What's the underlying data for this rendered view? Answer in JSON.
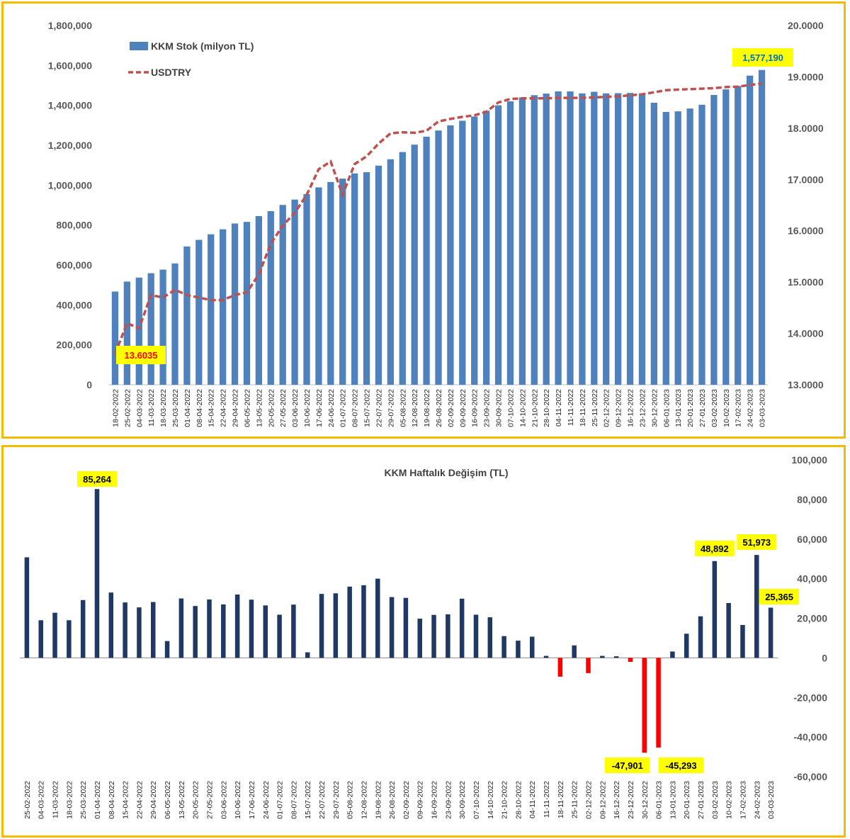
{
  "colors": {
    "border": "#f2bd00",
    "stock_bar": "#4f81bd",
    "usdtry_line": "#c0504d",
    "positive_bar": "#1f3864",
    "negative_bar": "#ff0000",
    "callout_bg": "#ffff00",
    "callout_red_text": "#ff0000",
    "callout_blue_text": "#0070c0",
    "callout_black_text": "#000000"
  },
  "chart_data": [
    {
      "type": "bar",
      "combo_line": true,
      "legend_position": "top-left",
      "grid": false,
      "legend": {
        "bar_series": "KKM Stok (milyon TL)",
        "line_series": "USDTRY"
      },
      "y_left": {
        "ylim": [
          0,
          1800000
        ],
        "ticks": [
          "0",
          "200,000",
          "400,000",
          "600,000",
          "800,000",
          "1,000,000",
          "1,200,000",
          "1,400,000",
          "1,600,000",
          "1,800,000"
        ]
      },
      "y_right": {
        "ylim": [
          13.0,
          20.0
        ],
        "ticks": [
          "13.0000",
          "14.0000",
          "15.0000",
          "16.0000",
          "17.0000",
          "18.0000",
          "19.0000",
          "20.0000"
        ]
      },
      "categories": [
        "18-02-2022",
        "25-02-2022",
        "04-03-2022",
        "11-03-2022",
        "18-03-2022",
        "25-03-2022",
        "01-04-2022",
        "08-04-2022",
        "15-04-2022",
        "22-04-2022",
        "29-04-2022",
        "06-05-2022",
        "13-05-2022",
        "20-05-2022",
        "27-05-2022",
        "03-06-2022",
        "10-06-2022",
        "17-06-2022",
        "24-06-2022",
        "01-07-2022",
        "08-07-2022",
        "15-07-2022",
        "22-07-2022",
        "29-07-2022",
        "05-08-2022",
        "12-08-2022",
        "19-08-2022",
        "26-08-2022",
        "02-09-2022",
        "09-09-2022",
        "16-09-2022",
        "23-09-2022",
        "30-09-2022",
        "07-10-2022",
        "14-10-2022",
        "21-10-2022",
        "28-10-2022",
        "04-11-2022",
        "11-11-2022",
        "18-11-2022",
        "25-11-2022",
        "02-12-2022",
        "09-12-2022",
        "16-12-2022",
        "23-12-2022",
        "30-12-2022",
        "06-01-2023",
        "13-01-2023",
        "20-01-2023",
        "27-01-2023",
        "03-02-2023",
        "10-02-2023",
        "17-02-2023",
        "24-02-2023",
        "03-03-2023"
      ],
      "x_tick_labels": [
        "18-02-2022",
        "25-02-2022",
        "04-03-2022",
        "11-03-2022",
        "18-03-2022",
        "25-03-2022",
        "01-04-2022",
        "08-04-2022",
        "15-04-2022",
        "22-04-2022",
        "29-04-2022",
        "06-05-2022",
        "13-05-2022",
        "20-05-2022",
        "27-05-2022",
        "03-06-2022",
        "10-06-2022",
        "17-06-2022",
        "24-06-2022",
        "01-07-2022",
        "08-07-2022",
        "15-07-2022",
        "22-07-2022",
        "29-07-2022",
        "05-08-2022",
        "12-08-2022",
        "19-08-2022",
        "26-08-2022",
        "02-09-2022",
        "09-09-2022",
        "16-09-2022",
        "23-09-2022",
        "30-09-2022",
        "07-10-2022",
        "14-10-2022",
        "21-10-2022",
        "28-10-2022",
        "04-11-2022",
        "11-11-2022",
        "18-11-2022",
        "25-11-2022",
        "02-12-2022",
        "09-12-2022",
        "16-12-2022",
        "23-12-2022",
        "30-12-2022",
        "06-01-2023",
        "13-01-2023",
        "20-01-2023",
        "27-01-2023",
        "03-02-2023",
        "10-02-2023",
        "17-02-2023",
        "24-02-2023",
        "03-03-2023"
      ],
      "series": [
        {
          "name": "KKM Stok (milyon TL)",
          "type": "bar",
          "axis": "left",
          "values": [
            467000,
            517000,
            537000,
            559000,
            577000,
            608000,
            693000,
            726000,
            754000,
            779000,
            808000,
            816000,
            845000,
            870000,
            901000,
            928000,
            955000,
            989000,
            1016000,
            1033000,
            1059000,
            1065000,
            1098000,
            1130000,
            1166000,
            1203000,
            1243000,
            1274000,
            1300000,
            1323000,
            1344000,
            1373000,
            1400000,
            1420000,
            1440000,
            1451000,
            1459000,
            1470000,
            1470000,
            1460000,
            1468000,
            1460000,
            1461000,
            1462000,
            1460000,
            1413000,
            1367000,
            1370000,
            1384000,
            1403000,
            1452000,
            1480000,
            1497000,
            1549000,
            1577190
          ]
        },
        {
          "name": "USDTRY",
          "type": "line",
          "axis": "right",
          "style": "dashed",
          "values": [
            13.6035,
            14.2,
            14.1,
            14.75,
            14.7,
            14.85,
            14.75,
            14.7,
            14.65,
            14.65,
            14.75,
            14.8,
            15.15,
            15.75,
            16.1,
            16.35,
            16.7,
            17.2,
            17.35,
            16.7,
            17.3,
            17.45,
            17.7,
            17.9,
            17.92,
            17.91,
            17.95,
            18.13,
            18.18,
            18.22,
            18.25,
            18.32,
            18.5,
            18.57,
            18.58,
            18.58,
            18.58,
            18.59,
            18.59,
            18.59,
            18.6,
            18.61,
            18.62,
            18.64,
            18.66,
            18.7,
            18.74,
            18.75,
            18.76,
            18.77,
            18.78,
            18.8,
            18.81,
            18.84,
            18.87
          ]
        }
      ],
      "annotations": [
        {
          "text": "13.6035",
          "series": "USDTRY",
          "category": "18-02-2022"
        },
        {
          "text": "1,577,190",
          "series": "KKM Stok (milyon TL)",
          "category": "03-03-2023"
        }
      ]
    },
    {
      "type": "bar",
      "title": "KKM Haftalık Değişim (TL)",
      "grid": false,
      "y_right": {
        "ylim": [
          -60000,
          100000
        ],
        "ticks": [
          "-60,000",
          "-40,000",
          "-20,000",
          "0",
          "20,000",
          "40,000",
          "60,000",
          "80,000",
          "100,000"
        ]
      },
      "categories": [
        "25-02-2022",
        "04-03-2022",
        "11-03-2022",
        "18-03-2022",
        "25-03-2022",
        "01-04-2022",
        "08-04-2022",
        "15-04-2022",
        "22-04-2022",
        "29-04-2022",
        "06-05-2022",
        "13-05-2022",
        "20-05-2022",
        "27-05-2022",
        "03-06-2022",
        "10-06-2022",
        "17-06-2022",
        "24-06-2022",
        "01-07-2022",
        "08-07-2022",
        "15-07-2022",
        "22-07-2022",
        "29-07-2022",
        "05-08-2022",
        "12-08-2022",
        "19-08-2022",
        "26-08-2022",
        "02-09-2022",
        "09-09-2022",
        "16-09-2022",
        "23-09-2022",
        "30-09-2022",
        "07-10-2022",
        "14-10-2022",
        "21-10-2022",
        "28-10-2022",
        "04-11-2022",
        "11-11-2022",
        "18-11-2022",
        "25-11-2022",
        "02-12-2022",
        "09-12-2022",
        "16-12-2022",
        "23-12-2022",
        "30-12-2022",
        "06-01-2023",
        "13-01-2023",
        "20-01-2023",
        "27-01-2023",
        "03-02-2023",
        "10-02-2023",
        "17-02-2023",
        "24-02-2023",
        "03-03-2023"
      ],
      "x_tick_labels": [
        "25-02-2022",
        "04-03-2022",
        "11-03-2022",
        "18-03-2022",
        "25-03-2022",
        "01-04-2022",
        "08-04-2022",
        "15-04-2022",
        "22-04-2022",
        "29-04-2022",
        "06-05-2022",
        "13-05-2022",
        "20-05-2022",
        "27-05-2022",
        "03-06-2022",
        "10-06-2022",
        "17-06-2022",
        "24-06-2022",
        "01-07-2022",
        "08-07-2022",
        "15-07-2022",
        "22-07-2022",
        "29-07-2022",
        "05-08-2022",
        "12-08-2022",
        "19-08-2022",
        "26-08-2022",
        "02-09-2022",
        "09-09-2022",
        "16-09-2022",
        "23-09-2022",
        "30-09-2022",
        "07-10-2022",
        "14-10-2022",
        "21-10-2022",
        "28-10-2022",
        "04-11-2022",
        "11-11-2022",
        "18-11-2022",
        "25-11-2022",
        "02-12-2022",
        "09-12-2022",
        "16-12-2022",
        "23-12-2022",
        "30-12-2022",
        "06-01-2023",
        "13-01-2023",
        "20-01-2023",
        "27-01-2023",
        "03-02-2023",
        "10-02-2023",
        "17-02-2023",
        "24-02-2023",
        "03-03-2023"
      ],
      "series": [
        {
          "type": "bar",
          "axis": "right",
          "values": [
            50800,
            19000,
            22800,
            19000,
            29200,
            85264,
            33000,
            28000,
            25500,
            28200,
            8500,
            30000,
            26200,
            29500,
            27000,
            32000,
            29400,
            26500,
            21800,
            26900,
            2800,
            32300,
            32600,
            36000,
            36700,
            40000,
            30700,
            30300,
            19800,
            21700,
            22000,
            29900,
            21800,
            20500,
            11000,
            8700,
            10700,
            1000,
            -9500,
            6300,
            -7700,
            1000,
            800,
            -2000,
            -47901,
            -45293,
            3200,
            12200,
            21000,
            48892,
            27700,
            16600,
            51973,
            25365
          ]
        }
      ],
      "annotations": [
        {
          "text": "85,264",
          "category": "01-04-2022"
        },
        {
          "text": "-47,901",
          "category": "30-12-2022"
        },
        {
          "text": "-45,293",
          "category": "06-01-2023"
        },
        {
          "text": "48,892",
          "category": "03-02-2023"
        },
        {
          "text": "51,973",
          "category": "24-02-2023"
        },
        {
          "text": "25,365",
          "category": "03-03-2023"
        }
      ]
    }
  ]
}
